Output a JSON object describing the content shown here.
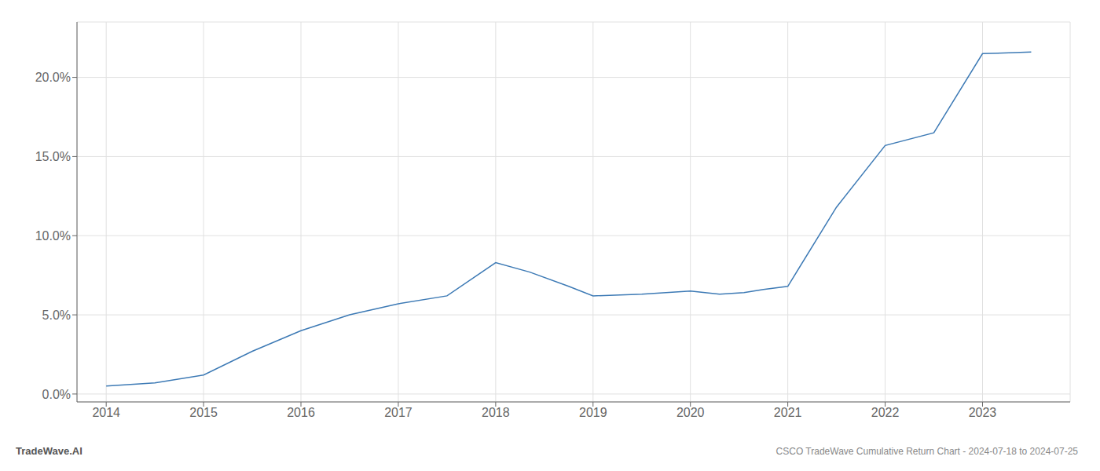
{
  "chart_data": {
    "type": "line",
    "title": "CSCO TradeWave Cumulative Return Chart - 2024-07-18 to 2024-07-25",
    "annotations": [
      "TradeWave.AI"
    ],
    "x": [
      2014.0,
      2014.5,
      2015.0,
      2015.5,
      2016.0,
      2016.5,
      2017.0,
      2017.5,
      2018.0,
      2018.35,
      2018.75,
      2019.0,
      2019.5,
      2020.0,
      2020.3,
      2020.55,
      2020.75,
      2021.0,
      2021.5,
      2022.0,
      2022.5,
      2023.0,
      2023.5
    ],
    "values": [
      0.005,
      0.007,
      0.012,
      0.027,
      0.04,
      0.05,
      0.057,
      0.062,
      0.083,
      0.077,
      0.068,
      0.062,
      0.063,
      0.065,
      0.063,
      0.064,
      0.066,
      0.068,
      0.118,
      0.157,
      0.165,
      0.215,
      0.216
    ],
    "color": "#3d7ab5",
    "xlim": [
      2013.7,
      2023.9
    ],
    "ylim": [
      -0.005,
      0.235
    ],
    "xticks": [
      2014,
      2015,
      2016,
      2017,
      2018,
      2019,
      2020,
      2021,
      2022,
      2023
    ],
    "yticks": [
      {
        "value": 0.0,
        "label": "0.0%"
      },
      {
        "value": 0.05,
        "label": "5.0%"
      },
      {
        "value": 0.1,
        "label": "10.0%"
      },
      {
        "value": 0.15,
        "label": "15.0%"
      },
      {
        "value": 0.2,
        "label": "20.0%"
      }
    ],
    "grid": true
  }
}
